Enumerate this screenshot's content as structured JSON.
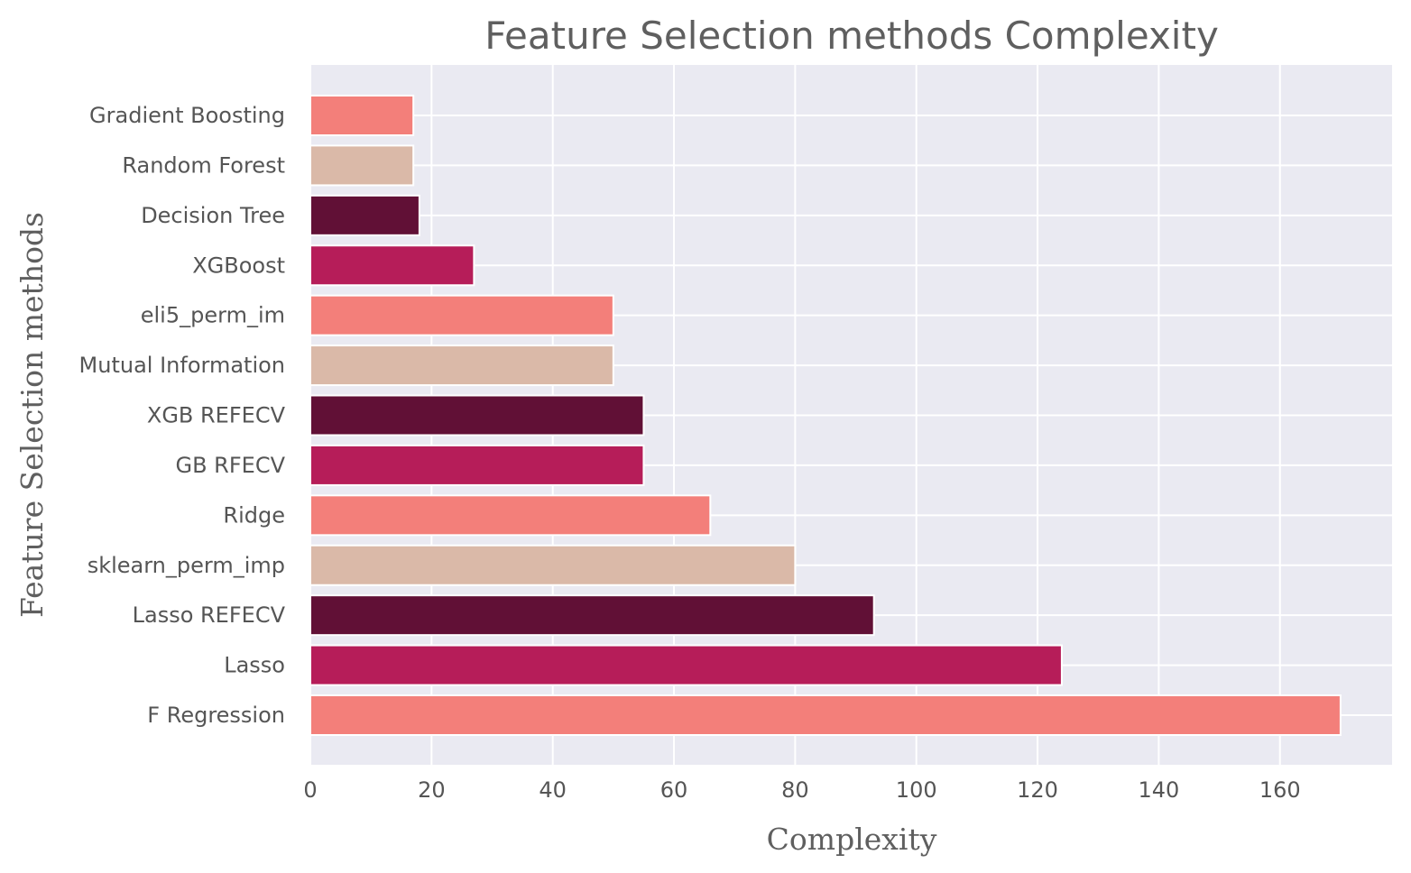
{
  "chart_data": {
    "type": "bar",
    "orientation": "horizontal",
    "title": "Feature Selection methods Complexity",
    "xlabel": "Complexity",
    "ylabel": "Feature Selection methods",
    "categories": [
      "F Regression",
      "Lasso",
      "Lasso REFECV",
      "sklearn_perm_imp",
      "Ridge",
      "GB RFECV",
      "XGB REFECV",
      "Mutual Information",
      "eli5_perm_im",
      "XGBoost",
      "Decision Tree",
      "Random Forest",
      "Gradient Boosting"
    ],
    "values": [
      170,
      124,
      93,
      80,
      66,
      55,
      55,
      50,
      50,
      27,
      18,
      17,
      17
    ],
    "colors": [
      "#f37f7a",
      "#b61d59",
      "#611036",
      "#dab9a8",
      "#f37f7a",
      "#b61d59",
      "#611036",
      "#dab9a8",
      "#f37f7a",
      "#b61d59",
      "#611036",
      "#dab9a8",
      "#f37f7a"
    ],
    "xlim": [
      0,
      178.5
    ],
    "xticks": [
      0,
      20,
      40,
      60,
      80,
      100,
      120,
      140,
      160
    ],
    "grid": true,
    "style": {
      "background": "#eaeaf2",
      "grid_color": "#ffffff"
    }
  }
}
